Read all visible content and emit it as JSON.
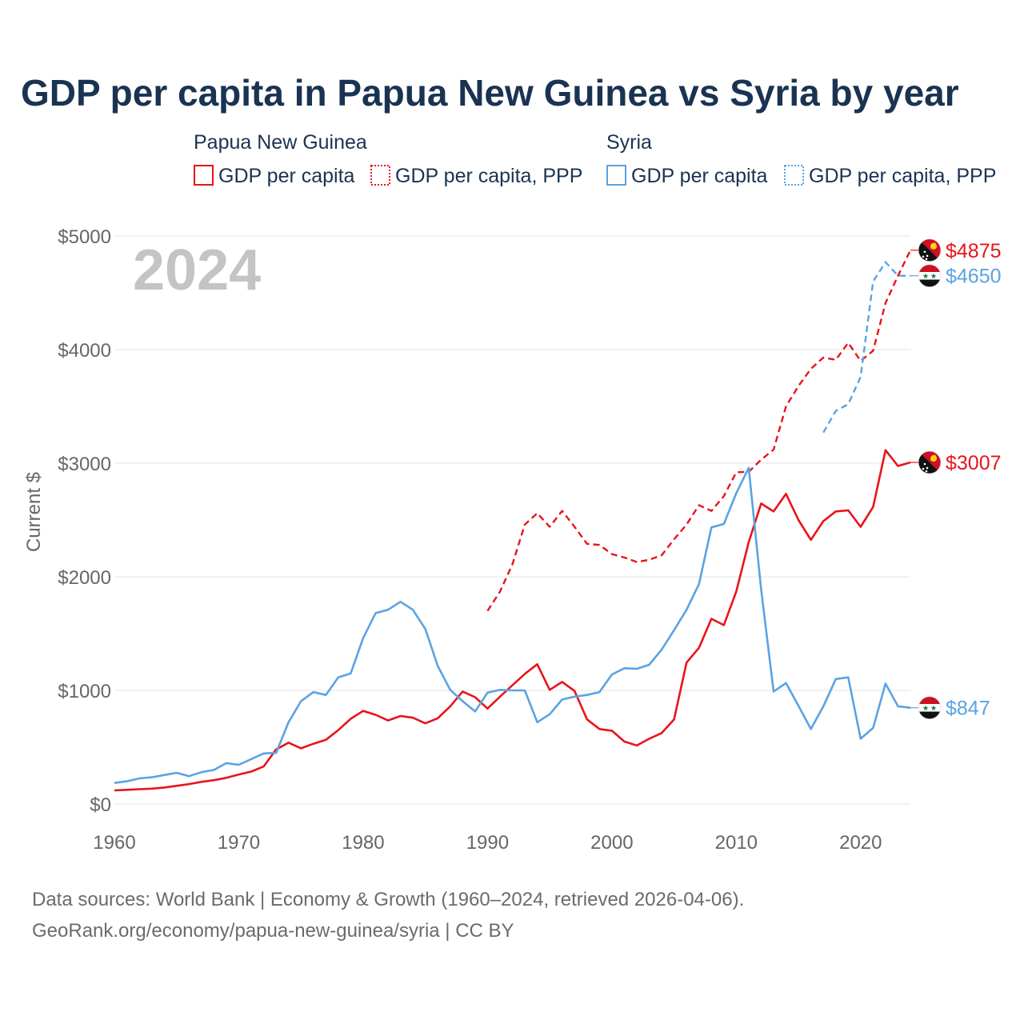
{
  "colors": {
    "png": "#e8141b",
    "syria": "#5aa3e3",
    "title": "#1a3352",
    "grid": "#e6e6e6",
    "axis_text": "#666666",
    "year_watermark": "#c4c4c4",
    "source_text": "#6b6b6b"
  },
  "chart_data": {
    "type": "line",
    "title": "GDP per capita in Papua New Guinea vs Syria by year",
    "ylabel": "Current $",
    "xlabel": "",
    "xlim": [
      1960,
      2024
    ],
    "ylim": [
      0,
      5000
    ],
    "grid": true,
    "x_ticks": [
      1960,
      1970,
      1980,
      1990,
      2000,
      2010,
      2020
    ],
    "y_ticks": [
      0,
      1000,
      2000,
      3000,
      4000,
      5000
    ],
    "y_tick_labels": [
      "$0",
      "$1000",
      "$2000",
      "$3000",
      "$4000",
      "$5000"
    ],
    "year_label": "2024",
    "legend": {
      "groups": [
        {
          "country": "Papua New Guinea",
          "items": [
            {
              "label": "GDP per capita",
              "style": "solid",
              "color": "#e8141b"
            },
            {
              "label": "GDP per capita, PPP",
              "style": "dotted",
              "color": "#e8141b"
            }
          ]
        },
        {
          "country": "Syria",
          "items": [
            {
              "label": "GDP per capita",
              "style": "solid",
              "color": "#5aa3e3"
            },
            {
              "label": "GDP per capita, PPP",
              "style": "dotted",
              "color": "#5aa3e3"
            }
          ]
        }
      ]
    },
    "series": [
      {
        "name": "Papua New Guinea GDP per capita",
        "country": "png",
        "dash": false,
        "color": "#e8141b",
        "end_label": "$3007",
        "x": [
          1960,
          1961,
          1962,
          1963,
          1964,
          1965,
          1966,
          1967,
          1968,
          1969,
          1970,
          1971,
          1972,
          1973,
          1974,
          1975,
          1976,
          1977,
          1978,
          1979,
          1980,
          1981,
          1982,
          1983,
          1984,
          1985,
          1986,
          1987,
          1988,
          1989,
          1990,
          1991,
          1992,
          1993,
          1994,
          1995,
          1996,
          1997,
          1998,
          1999,
          2000,
          2001,
          2002,
          2003,
          2004,
          2005,
          2006,
          2007,
          2008,
          2009,
          2010,
          2011,
          2012,
          2013,
          2014,
          2015,
          2016,
          2017,
          2018,
          2019,
          2020,
          2021,
          2022,
          2023,
          2024
        ],
        "values": [
          120,
          125,
          130,
          135,
          145,
          160,
          175,
          195,
          210,
          230,
          260,
          285,
          330,
          480,
          540,
          490,
          530,
          565,
          650,
          750,
          820,
          785,
          735,
          775,
          760,
          710,
          755,
          860,
          990,
          940,
          840,
          945,
          1045,
          1145,
          1230,
          1005,
          1075,
          995,
          745,
          660,
          645,
          550,
          515,
          575,
          625,
          745,
          1245,
          1375,
          1630,
          1575,
          1870,
          2305,
          2645,
          2575,
          2730,
          2500,
          2325,
          2490,
          2575,
          2585,
          2440,
          2615,
          3115,
          2975,
          3007
        ]
      },
      {
        "name": "Papua New Guinea GDP per capita, PPP",
        "country": "png",
        "dash": true,
        "color": "#e8141b",
        "end_label": "$4875",
        "x": [
          1990,
          1991,
          1992,
          1993,
          1994,
          1995,
          1996,
          1997,
          1998,
          1999,
          2000,
          2001,
          2002,
          2003,
          2004,
          2005,
          2006,
          2007,
          2008,
          2009,
          2010,
          2011,
          2012,
          2013,
          2014,
          2015,
          2016,
          2017,
          2018,
          2019,
          2020,
          2021,
          2022,
          2023,
          2024
        ],
        "values": [
          1700,
          1870,
          2110,
          2460,
          2560,
          2440,
          2580,
          2440,
          2290,
          2280,
          2200,
          2170,
          2130,
          2150,
          2190,
          2330,
          2460,
          2630,
          2580,
          2710,
          2920,
          2925,
          3030,
          3120,
          3500,
          3680,
          3830,
          3930,
          3910,
          4060,
          3900,
          3990,
          4410,
          4650,
          4875
        ]
      },
      {
        "name": "Syria GDP per capita",
        "country": "syria",
        "dash": false,
        "color": "#5aa3e3",
        "end_label": "$847",
        "x": [
          1960,
          1961,
          1962,
          1963,
          1964,
          1965,
          1966,
          1967,
          1968,
          1969,
          1970,
          1971,
          1972,
          1973,
          1974,
          1975,
          1976,
          1977,
          1978,
          1979,
          1980,
          1981,
          1982,
          1983,
          1984,
          1985,
          1986,
          1987,
          1988,
          1989,
          1990,
          1991,
          1992,
          1993,
          1994,
          1995,
          1996,
          1997,
          1998,
          1999,
          2000,
          2001,
          2002,
          2003,
          2004,
          2005,
          2006,
          2007,
          2008,
          2009,
          2010,
          2011,
          2012,
          2013,
          2014,
          2015,
          2016,
          2017,
          2018,
          2019,
          2020,
          2021,
          2022,
          2023,
          2024
        ],
        "values": [
          185,
          200,
          225,
          235,
          255,
          275,
          245,
          280,
          300,
          360,
          345,
          395,
          445,
          450,
          720,
          905,
          985,
          960,
          1115,
          1150,
          1460,
          1680,
          1710,
          1780,
          1710,
          1540,
          1215,
          1005,
          905,
          815,
          980,
          1005,
          1000,
          1000,
          720,
          790,
          920,
          945,
          960,
          985,
          1140,
          1195,
          1190,
          1225,
          1360,
          1530,
          1710,
          1935,
          2435,
          2465,
          2735,
          2960,
          1890,
          990,
          1065,
          865,
          660,
          860,
          1100,
          1115,
          575,
          670,
          1060,
          860,
          847
        ]
      },
      {
        "name": "Syria GDP per capita, PPP",
        "country": "syria",
        "dash": true,
        "color": "#5aa3e3",
        "end_label": "$4650",
        "x": [
          2017,
          2018,
          2019,
          2020,
          2021,
          2022,
          2023,
          2024
        ],
        "values": [
          3270,
          3460,
          3520,
          3760,
          4600,
          4770,
          4650,
          4650
        ]
      }
    ]
  },
  "source": {
    "line1": "Data sources: World Bank | Economy & Growth (1960–2024, retrieved 2026-04-06).",
    "line2": "GeoRank.org/economy/papua-new-guinea/syria | CC BY"
  }
}
